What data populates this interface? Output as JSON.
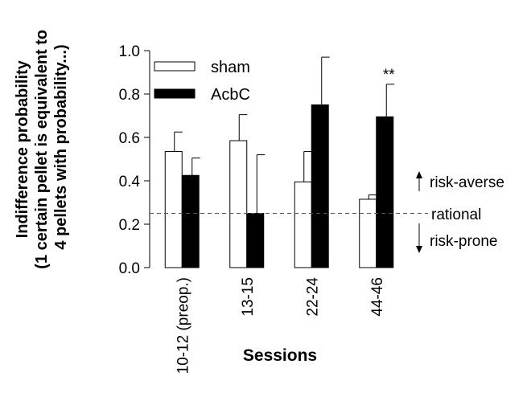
{
  "chart_data": {
    "type": "bar",
    "categories": [
      "10-12 (preop.)",
      "13-15",
      "22-24",
      "44-46"
    ],
    "series": [
      {
        "name": "sham",
        "values": [
          0.535,
          0.585,
          0.395,
          0.315
        ],
        "errors": [
          0.09,
          0.12,
          0.14,
          0.02
        ],
        "color": "#ffffff"
      },
      {
        "name": "AcbC",
        "values": [
          0.425,
          0.25,
          0.75,
          0.695
        ],
        "errors": [
          0.08,
          0.27,
          0.22,
          0.15
        ],
        "color": "#000000"
      }
    ],
    "xlabel": "Sessions",
    "ylabel_lines": [
      "Indifference probability",
      "(1 certain pellet is equivalent to",
      "4 pellets with probability...)"
    ],
    "ylim": [
      0,
      1.0
    ],
    "yticks": [
      "0.0",
      "0.2",
      "0.4",
      "0.6",
      "0.8",
      "1.0"
    ],
    "reference_line": {
      "y": 0.25,
      "style": "dashed",
      "label": "rational"
    },
    "right_annotations": {
      "upper": "risk-averse",
      "lower": "risk-prone"
    },
    "significance": [
      {
        "category_index": 3,
        "series_index": 1,
        "label": "**"
      }
    ],
    "legend_position": "top-left",
    "grid": false
  }
}
